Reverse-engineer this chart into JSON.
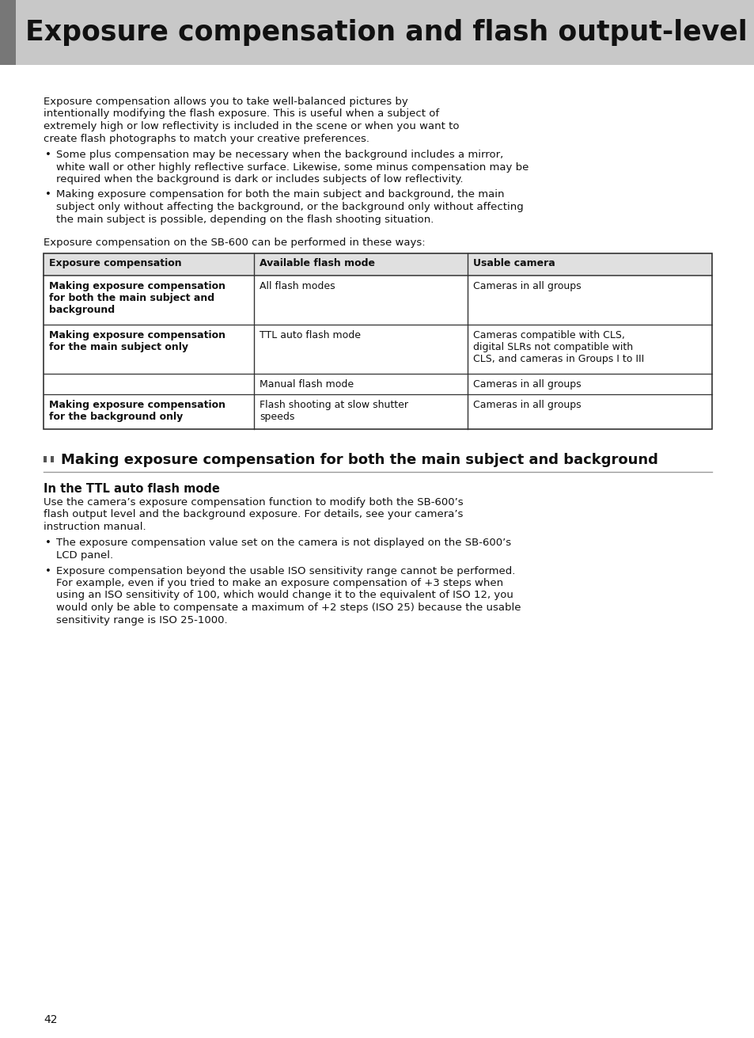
{
  "page_bg": "#ffffff",
  "header_bg": "#c8c8c8",
  "header_text": "Exposure compensation and flash output-level",
  "header_text_color": "#111111",
  "header_font_size": 25,
  "left_bar_color": "#666666",
  "body_text_color": "#111111",
  "intro_paragraph": "Exposure compensation allows you to take well-balanced pictures by\nintentionally modifying the flash exposure. This is useful when a subject of\nextremely high or low reflectivity is included in the scene or when you want to\ncreate flash photographs to match your creative preferences.",
  "bullet1": "Some plus compensation may be necessary when the background includes a mirror,\nwhite wall or other highly reflective surface. Likewise, some minus compensation may be\nrequired when the background is dark or includes subjects of low reflectivity.",
  "bullet2": "Making exposure compensation for both the main subject and background, the main\nsubject only without affecting the background, or the background only without affecting\nthe main subject is possible, depending on the flash shooting situation.",
  "table_intro": "Exposure compensation on the SB-600 can be performed in these ways:",
  "table_header": [
    "Exposure compensation",
    "Available flash mode",
    "Usable camera"
  ],
  "table_rows": [
    [
      "Making exposure compensation\nfor both the main subject and\nbackground",
      "All flash modes",
      "Cameras in all groups"
    ],
    [
      "Making exposure compensation\nfor the main subject only",
      "TTL auto flash mode",
      "Cameras compatible with CLS,\ndigital SLRs not compatible with\nCLS, and cameras in Groups I to III"
    ],
    [
      "",
      "Manual flash mode",
      "Cameras in all groups"
    ],
    [
      "Making exposure compensation\nfor the background only",
      "Flash shooting at slow shutter\nspeeds",
      "Cameras in all groups"
    ]
  ],
  "section_title": "❟❟  Making exposure compensation for both the main subject and background",
  "subsection_title": "In the TTL auto flash mode",
  "subsection_body": "Use the camera’s exposure compensation function to modify both the SB-600’s\nflash output level and the background exposure. For details, see your camera’s\ninstruction manual.",
  "sub_bullet1": "The exposure compensation value set on the camera is not displayed on the SB-600’s\nLCD panel.",
  "sub_bullet2": "Exposure compensation beyond the usable ISO sensitivity range cannot be performed.\nFor example, even if you tried to make an exposure compensation of +3 steps when\nusing an ISO sensitivity of 100, which would change it to the equivalent of ISO 12, you\nwould only be able to compensate a maximum of +2 steps (ISO 25) because the usable\nsensitivity range is ISO 25-1000.",
  "page_number": "42"
}
